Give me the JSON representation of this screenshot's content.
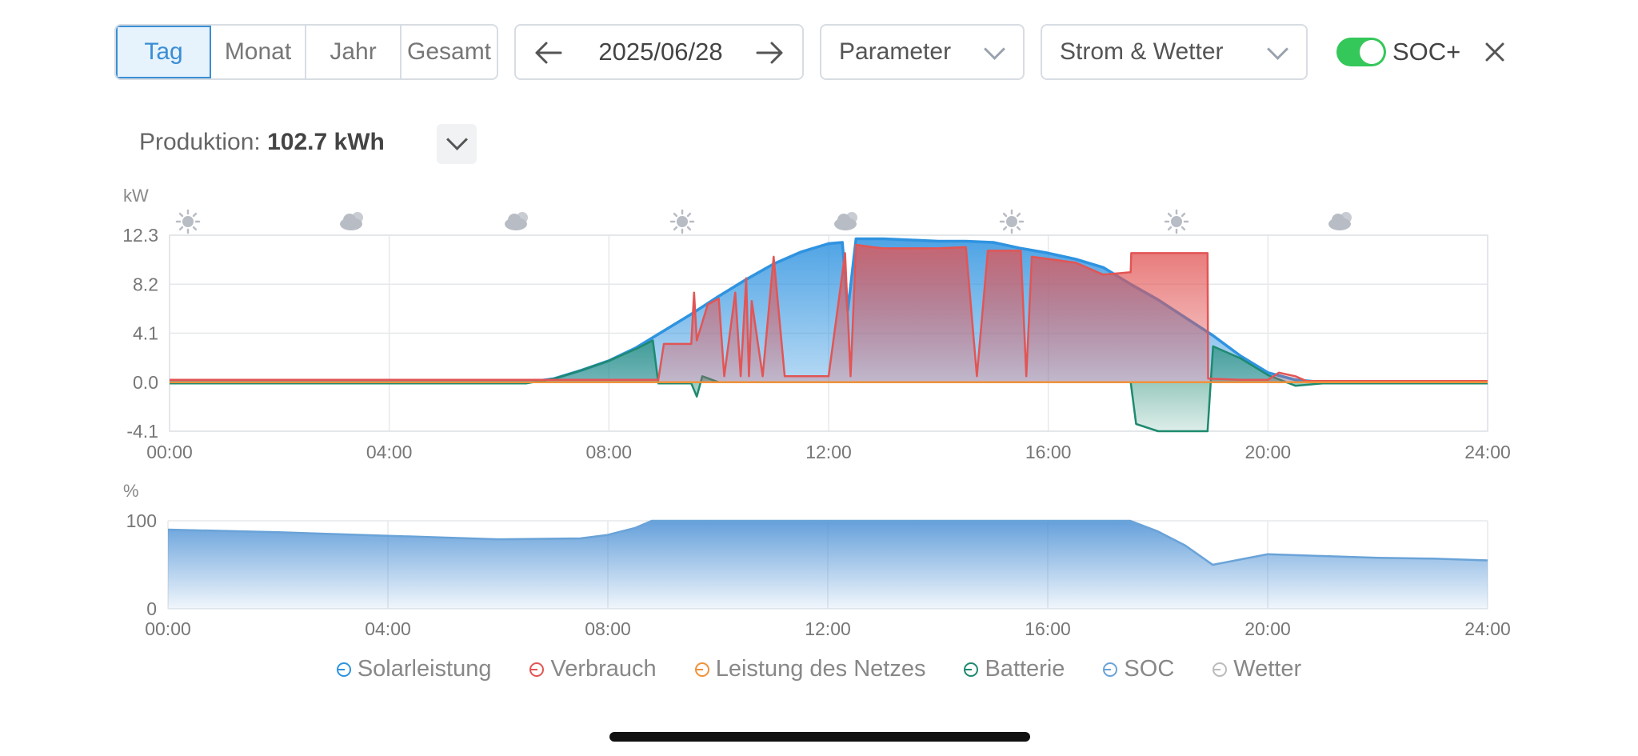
{
  "toolbar": {
    "periods": [
      "Tag",
      "Monat",
      "Jahr",
      "Gesamt"
    ],
    "active_period": "Tag",
    "date": "2025/06/28",
    "parameter_select": "Parameter",
    "view_select": "Strom & Wetter",
    "soc_toggle_label": "SOC+",
    "soc_toggle_on": true
  },
  "summary": {
    "label": "Produktion:",
    "value": "102.7 kWh"
  },
  "colors": {
    "accent": "#3a8ed4",
    "solar": "#2f93e0",
    "consumption": "#e25555",
    "grid": "#f0923a",
    "battery": "#1e8a70",
    "soc": "#6aa3d8",
    "weather": "#bbbbbb",
    "toggle_on": "#34c759"
  },
  "weather_icons": [
    "sun-icon",
    "cloud-sun-icon",
    "cloud-sun-icon",
    "sun-icon",
    "cloud-sun-icon",
    "sun-icon",
    "sun-icon",
    "cloud-sun-icon"
  ],
  "chart_data": [
    {
      "type": "area",
      "ylabel": "kW",
      "ylim": [
        -4.1,
        12.3
      ],
      "yticks": [
        "12.3",
        "8.2",
        "4.1",
        "0.0",
        "-4.1"
      ],
      "xlim": [
        0,
        24
      ],
      "xticks": [
        "00:00",
        "04:00",
        "08:00",
        "12:00",
        "16:00",
        "20:00",
        "24:00"
      ],
      "grid": true,
      "series": [
        {
          "name": "Solarleistung",
          "x": [
            0,
            6.5,
            7.0,
            7.5,
            8.0,
            8.5,
            9.0,
            9.5,
            10.0,
            10.5,
            11.0,
            11.5,
            12.0,
            12.25,
            12.35,
            12.5,
            13.0,
            13.5,
            14.0,
            14.5,
            15.0,
            15.5,
            16.0,
            16.5,
            17.0,
            17.5,
            18.0,
            18.5,
            19.0,
            19.5,
            20.0,
            20.5,
            21.0,
            24
          ],
          "y": [
            0,
            0,
            0.3,
            1.0,
            1.8,
            2.9,
            4.3,
            5.7,
            7.2,
            8.6,
            9.9,
            10.9,
            11.6,
            11.7,
            6.0,
            12.0,
            12.0,
            11.9,
            11.8,
            11.8,
            11.7,
            11.2,
            10.8,
            10.3,
            9.6,
            8.2,
            6.9,
            5.4,
            3.9,
            2.2,
            0.8,
            0.2,
            0,
            0
          ]
        },
        {
          "name": "Verbrauch",
          "x": [
            0,
            8.9,
            9.0,
            9.5,
            9.55,
            9.6,
            9.8,
            10.0,
            10.1,
            10.3,
            10.4,
            10.5,
            10.55,
            10.6,
            10.8,
            11.0,
            11.2,
            11.5,
            12.0,
            12.3,
            12.4,
            12.5,
            12.8,
            13.0,
            13.5,
            14.0,
            14.5,
            14.7,
            14.9,
            15.5,
            15.6,
            15.7,
            16.5,
            17.0,
            17.5,
            17.51,
            18.0,
            18.5,
            18.9,
            18.91,
            19.5,
            20.0,
            20.2,
            20.5,
            20.7,
            24
          ],
          "y": [
            0.2,
            0.2,
            3.2,
            3.2,
            7.5,
            3.5,
            6.5,
            7.0,
            0.5,
            7.5,
            0.5,
            8.7,
            0.5,
            6.8,
            0.5,
            10.5,
            0.5,
            0.5,
            0.5,
            10.8,
            0.5,
            11.5,
            11.3,
            11.2,
            11.2,
            11.2,
            11.3,
            0.5,
            11.0,
            11.0,
            0.5,
            10.5,
            10.0,
            9.0,
            9.2,
            10.8,
            10.8,
            10.8,
            10.8,
            0.3,
            0.2,
            0.2,
            0.8,
            0.5,
            0.1,
            0.1
          ]
        },
        {
          "name": "Leistung des Netzes",
          "x": [
            0,
            24
          ],
          "y": [
            0,
            0
          ]
        },
        {
          "name": "Batterie",
          "x": [
            0,
            6.5,
            7.0,
            7.5,
            8.0,
            8.5,
            8.8,
            8.9,
            9.5,
            9.6,
            9.7,
            10,
            17.5,
            17.6,
            18.0,
            18.5,
            18.9,
            19.0,
            19.5,
            20.0,
            20.5,
            21.0,
            24
          ],
          "y": [
            -0.1,
            -0.1,
            0.3,
            1.0,
            1.8,
            2.8,
            3.5,
            -0.1,
            -0.1,
            -1.2,
            0.5,
            0,
            0,
            -3.5,
            -4.1,
            -4.1,
            -4.1,
            3.0,
            2.0,
            0.6,
            -0.3,
            -0.1,
            -0.1
          ]
        }
      ]
    },
    {
      "type": "area",
      "ylabel": "%",
      "ylim": [
        0,
        100
      ],
      "yticks": [
        "100",
        "0"
      ],
      "xlim": [
        0,
        24
      ],
      "xticks": [
        "00:00",
        "04:00",
        "08:00",
        "12:00",
        "16:00",
        "20:00",
        "24:00"
      ],
      "grid": true,
      "series": [
        {
          "name": "SOC",
          "x": [
            0,
            2,
            4,
            6,
            7.5,
            8.0,
            8.5,
            8.8,
            9.0,
            12,
            16,
            17.5,
            18.0,
            18.5,
            19.0,
            19.5,
            20.0,
            21.0,
            22.0,
            23.0,
            24
          ],
          "y": [
            90,
            87,
            83,
            79,
            80,
            84,
            92,
            100,
            100,
            100,
            100,
            100,
            88,
            72,
            50,
            56,
            62,
            60,
            58,
            57,
            55
          ]
        }
      ]
    }
  ],
  "legend": [
    {
      "label": "Solarleistung",
      "color": "#2f93e0"
    },
    {
      "label": "Verbrauch",
      "color": "#e25555"
    },
    {
      "label": "Leistung des Netzes",
      "color": "#f0923a"
    },
    {
      "label": "Batterie",
      "color": "#1e8a70"
    },
    {
      "label": "SOC",
      "color": "#6aa3d8"
    },
    {
      "label": "Wetter",
      "color": "#bbbbbb"
    }
  ]
}
